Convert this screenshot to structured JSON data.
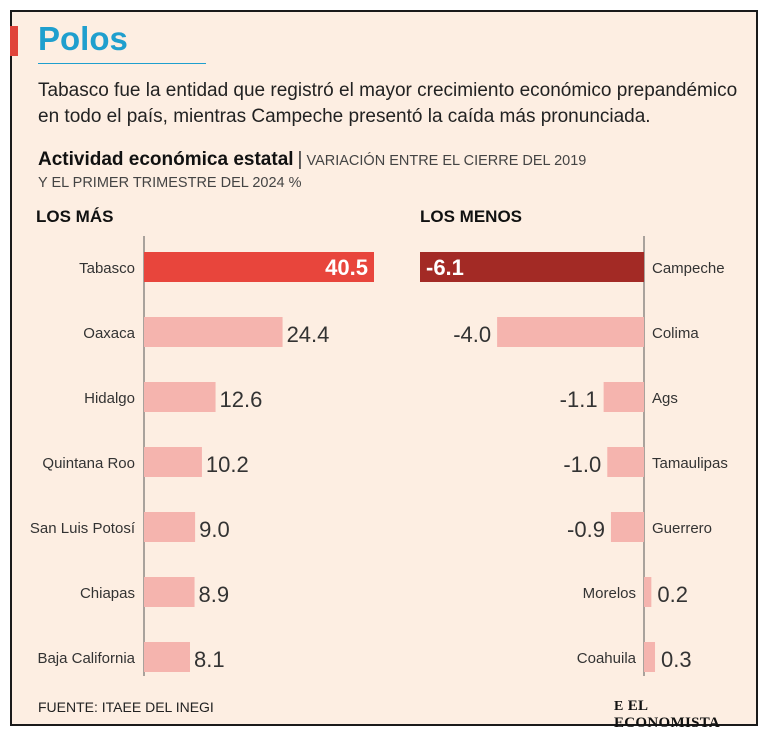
{
  "header": {
    "title": "Polos",
    "lede": "Tabasco fue la entidad que registró el mayor crecimiento económico prepandémico en todo el país, mientras Campeche presentó la caída más pronunciada.",
    "subtitle_bold": "Actividad económica estatal",
    "subtitle_sep": "|",
    "subtitle_rest_line1": "VARIACIÓN ENTRE EL CIERRE DEL 2019",
    "subtitle_rest_line2": "Y EL PRIMER TRIMESTRE DEL 2024 %"
  },
  "chart_data": [
    {
      "type": "bar",
      "orientation": "horizontal",
      "title": "LOS MÁS",
      "categories": [
        "Tabasco",
        "Oaxaca",
        "Hidalgo",
        "Quintana Roo",
        "San Luis Potosí",
        "Chiapas",
        "Baja California"
      ],
      "values": [
        40.5,
        24.4,
        12.6,
        10.2,
        9.0,
        8.9,
        8.1
      ],
      "labels": [
        "40.5",
        "24.4",
        "12.6",
        "10.2",
        "9.0",
        "8.9",
        "8.1"
      ],
      "highlight_index": 0,
      "colors": {
        "highlight": "#e8453c",
        "normal": "#f5b4ae",
        "highlight_text": "#ffffff",
        "text": "#333333"
      }
    },
    {
      "type": "bar",
      "orientation": "horizontal",
      "title": "LOS MENOS",
      "categories": [
        "Campeche",
        "Colima",
        "Ags",
        "Tamaulipas",
        "Guerrero",
        "Morelos",
        "Coahuila"
      ],
      "values": [
        -6.1,
        -4.0,
        -1.1,
        -1.0,
        -0.9,
        0.2,
        0.3
      ],
      "labels": [
        "-6.1",
        "-4.0",
        "-1.1",
        "-1.0",
        "-0.9",
        "0.2",
        "0.3"
      ],
      "highlight_index": 0,
      "colors": {
        "highlight": "#a32a25",
        "normal": "#f5b4ae",
        "highlight_text": "#ffffff",
        "text": "#333333"
      }
    }
  ],
  "footer": {
    "source": "FUENTE: ITAEE DEL INEGI",
    "brand_mark": "E",
    "brand": "EL ECONOMISTA"
  }
}
